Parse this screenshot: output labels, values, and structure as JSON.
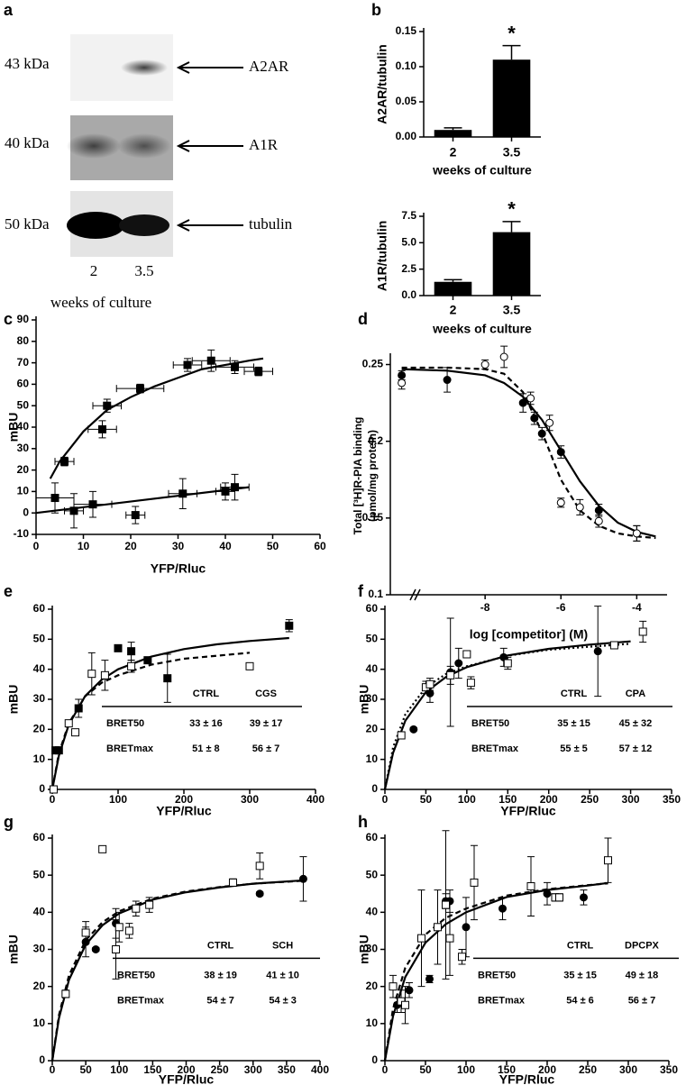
{
  "blot": {
    "label": "a",
    "bands": [
      {
        "size": "43 kDa",
        "name": "A2AR"
      },
      {
        "size": "40 kDa",
        "name": "A1R"
      },
      {
        "size": "50 kDa",
        "name": "tubulin"
      }
    ],
    "lanes": [
      "2",
      "3.5"
    ],
    "xlabel": "weeks of culture"
  },
  "chart_data": [
    {
      "type": "bar",
      "label": "b",
      "ylabel": "A2AR/tubulin",
      "xlabel": "weeks of culture",
      "categories": [
        "2",
        "3.5"
      ],
      "values": [
        0.01,
        0.11
      ],
      "yerr": [
        0.003,
        0.02
      ],
      "color": "#000000",
      "annotation": "*",
      "ylim": [
        0,
        0.15
      ],
      "yticks": [
        {
          "value": 0,
          "label": "0.00"
        },
        {
          "value": 0.05,
          "label": "0.05"
        },
        {
          "value": 0.1,
          "label": "0.10"
        },
        {
          "value": 0.15,
          "label": "0.15"
        }
      ]
    },
    {
      "type": "bar",
      "ylabel": "A1R/tubulin",
      "xlabel": "weeks of culture",
      "categories": [
        "2",
        "3.5"
      ],
      "values": [
        1.3,
        6.0
      ],
      "yerr": [
        0.2,
        1.0
      ],
      "color": "#000000",
      "annotation": "*",
      "ylim": [
        0,
        7.5
      ],
      "yticks": [
        {
          "value": 0,
          "label": "0.0"
        },
        {
          "value": 2.5,
          "label": "2.5"
        },
        {
          "value": 5,
          "label": "5.0"
        },
        {
          "value": 7.5,
          "label": "7.5"
        }
      ]
    },
    {
      "type": "scatter",
      "label": "c",
      "xlabel": "YFP/Rluc",
      "ylabel": "mBU",
      "xlim": [
        0,
        60
      ],
      "xticks": [
        0,
        10,
        20,
        30,
        40,
        50,
        60
      ],
      "ylim": [
        -10,
        90
      ],
      "yticks": [
        -10,
        0,
        10,
        20,
        30,
        40,
        50,
        60,
        70,
        80,
        90
      ],
      "series": [
        {
          "marker": "square-filled",
          "color": "#000000",
          "x": [
            6,
            14,
            15,
            22,
            32,
            37,
            42,
            47
          ],
          "values": [
            24,
            39,
            50,
            58,
            69,
            71,
            68,
            66
          ],
          "yerr": [
            2,
            4,
            3,
            2,
            3,
            5,
            3,
            2
          ],
          "xerr": [
            2,
            3,
            3,
            5,
            3,
            4,
            4,
            3
          ]
        },
        {
          "marker": "square-filled",
          "color": "#000000",
          "x": [
            4,
            8,
            12,
            21,
            31,
            40,
            42
          ],
          "values": [
            7,
            1,
            4,
            -1,
            9,
            10,
            12
          ],
          "yerr": [
            7,
            8,
            6,
            4,
            7,
            4,
            6
          ],
          "xerr": [
            4,
            2,
            4,
            2,
            3,
            2,
            3
          ]
        }
      ],
      "fits": [
        {
          "dash": "solid",
          "x": [
            3,
            5,
            10,
            15,
            20,
            25,
            30,
            35,
            40,
            45,
            48
          ],
          "y": [
            16,
            24,
            38,
            48,
            54,
            59,
            63,
            67,
            69,
            71,
            72
          ]
        },
        {
          "dash": "solid",
          "x": [
            0,
            45
          ],
          "y": [
            0,
            12
          ]
        }
      ]
    },
    {
      "type": "scatter",
      "label": "d",
      "xlabel": "log [competitor]  (M)",
      "ylabel": [
        "Total [³H]R-PIA binding",
        "(pmol/mg protein)"
      ],
      "axis_break": true,
      "xlim": [
        -10.5,
        -3.2
      ],
      "xticks": [
        -8,
        -6,
        -4
      ],
      "ylim": [
        0.1,
        0.255
      ],
      "yticks": [
        0.1,
        0.15,
        0.2,
        0.25
      ],
      "series": [
        {
          "marker": "circle-filled",
          "color": "#000000",
          "x": [
            -10.2,
            -9,
            -7,
            -6.7,
            -6.5,
            -6,
            -5,
            -4
          ],
          "values": [
            0.243,
            0.24,
            0.225,
            0.215,
            0.205,
            0.193,
            0.155,
            0.14
          ],
          "yerr": [
            0.003,
            0.008,
            0.006,
            0.004,
            0.004,
            0.004,
            0.004,
            0.005
          ]
        },
        {
          "marker": "circle-open",
          "color": "#000000",
          "x": [
            -10.2,
            -8,
            -7.5,
            -6.8,
            -6.3,
            -6,
            -5.5,
            -5,
            -4
          ],
          "values": [
            0.238,
            0.25,
            0.255,
            0.228,
            0.212,
            0.16,
            0.157,
            0.148,
            0.14
          ],
          "yerr": [
            0.004,
            0.003,
            0.007,
            0.004,
            0.005,
            0.003,
            0.005,
            0.004,
            0.005
          ]
        }
      ],
      "fits": [
        {
          "dash": "solid",
          "x": [
            -10.2,
            -9,
            -8,
            -7.5,
            -7,
            -6.5,
            -6,
            -5.5,
            -5,
            -4.5,
            -4,
            -3.5
          ],
          "y": [
            0.247,
            0.246,
            0.243,
            0.238,
            0.229,
            0.214,
            0.194,
            0.174,
            0.158,
            0.147,
            0.141,
            0.138
          ]
        },
        {
          "dash": "dashed",
          "x": [
            -10.2,
            -9,
            -8,
            -7.5,
            -7,
            -6.5,
            -6,
            -5.5,
            -5,
            -4.5,
            -4,
            -3.5
          ],
          "y": [
            0.248,
            0.248,
            0.247,
            0.244,
            0.232,
            0.206,
            0.175,
            0.155,
            0.145,
            0.14,
            0.138,
            0.137
          ]
        }
      ]
    },
    {
      "type": "scatter",
      "label": "e",
      "xlabel": "YFP/Rluc",
      "ylabel": "mBU",
      "xlim": [
        0,
        400
      ],
      "xticks": [
        0,
        100,
        200,
        300,
        400
      ],
      "ylim": [
        0,
        60
      ],
      "yticks": [
        0,
        10,
        20,
        30,
        40,
        50,
        60
      ],
      "series": [
        {
          "marker": "square-filled",
          "color": "#000000",
          "x": [
            5,
            10,
            40,
            100,
            120,
            145,
            175,
            360
          ],
          "values": [
            13,
            13,
            27,
            47,
            46,
            43,
            37,
            54.5
          ],
          "yerr": [
            1,
            1,
            3,
            1,
            3,
            1,
            8,
            2
          ]
        },
        {
          "marker": "square-open",
          "color": "#000000",
          "x": [
            2,
            25,
            35,
            60,
            80,
            120,
            300
          ],
          "values": [
            0,
            22,
            19,
            38.5,
            38,
            41,
            41
          ],
          "yerr": [
            0.5,
            1,
            1,
            7,
            5,
            2,
            0.5
          ]
        }
      ],
      "fits": [
        {
          "dash": "solid",
          "x": [
            0,
            10,
            25,
            50,
            75,
            100,
            150,
            200,
            250,
            300,
            360
          ],
          "y": [
            0,
            11.2,
            21.5,
            31.1,
            36.5,
            40,
            44.2,
            46.7,
            48.3,
            49.4,
            50.4
          ]
        },
        {
          "dash": "dashed",
          "x": [
            0,
            10,
            25,
            50,
            75,
            100,
            150,
            200,
            250,
            300
          ],
          "y": [
            0,
            12,
            22,
            31,
            35.5,
            38,
            41.5,
            43.5,
            44.5,
            45.5
          ]
        }
      ],
      "table": {
        "columns": [
          "CTRL",
          "CGS"
        ],
        "rows": [
          {
            "name": "BRET50",
            "cells": [
              "33 ± 16",
              "39 ± 17"
            ]
          },
          {
            "name": "BRETmax",
            "cells": [
              "51 ± 8",
              "56 ± 7"
            ]
          }
        ]
      }
    },
    {
      "type": "scatter",
      "label": "f",
      "xlabel": "YFP/Rluc",
      "ylabel": "mBU",
      "xlim": [
        0,
        350
      ],
      "xticks": [
        0,
        50,
        100,
        150,
        200,
        250,
        300,
        350
      ],
      "ylim": [
        0,
        60
      ],
      "yticks": [
        0,
        10,
        20,
        30,
        40,
        50,
        60
      ],
      "series": [
        {
          "marker": "circle-filled",
          "color": "#000000",
          "x": [
            35,
            55,
            80,
            90,
            145,
            260
          ],
          "values": [
            20,
            32,
            39,
            42,
            44,
            46
          ],
          "yerr": [
            0.5,
            3,
            18,
            5,
            3,
            15
          ]
        },
        {
          "marker": "square-open",
          "color": "#000000",
          "x": [
            20,
            50,
            55,
            80,
            100,
            105,
            150,
            280,
            315
          ],
          "values": [
            18,
            34,
            35,
            38,
            45,
            35.5,
            42,
            48,
            52.5
          ],
          "yerr": [
            1,
            2,
            2,
            3,
            0.5,
            2,
            2,
            1,
            3.5
          ]
        }
      ],
      "fits": [
        {
          "dash": "solid",
          "x": [
            0,
            10,
            25,
            50,
            75,
            100,
            150,
            200,
            250,
            300
          ],
          "y": [
            0,
            12.2,
            22.9,
            32.4,
            37.5,
            40.7,
            44.6,
            46.8,
            48.2,
            49.3
          ]
        },
        {
          "dash": "dotted",
          "x": [
            0,
            10,
            25,
            50,
            75,
            100,
            150,
            200,
            250,
            300
          ],
          "y": [
            0,
            14,
            25,
            34,
            38.5,
            41,
            44.5,
            46.5,
            47.5,
            48.5
          ]
        }
      ],
      "table": {
        "columns": [
          "CTRL",
          "CPA"
        ],
        "rows": [
          {
            "name": "BRET50",
            "cells": [
              "35 ± 15",
              "45 ± 32"
            ]
          },
          {
            "name": "BRETmax",
            "cells": [
              "55 ± 5",
              "57 ± 12"
            ]
          }
        ]
      }
    },
    {
      "type": "scatter",
      "label": "g",
      "xlabel": "YFP/Rluc",
      "ylabel": "mBU",
      "xlim": [
        0,
        400
      ],
      "xticks": [
        0,
        50,
        100,
        150,
        200,
        250,
        300,
        350,
        400
      ],
      "ylim": [
        0,
        60
      ],
      "yticks": [
        0,
        10,
        20,
        30,
        40,
        50,
        60
      ],
      "series": [
        {
          "marker": "circle-filled",
          "color": "#000000",
          "x": [
            50,
            65,
            95,
            310,
            375
          ],
          "values": [
            32,
            30,
            37,
            45,
            49
          ],
          "yerr": [
            4,
            0.5,
            4,
            0.5,
            6
          ]
        },
        {
          "marker": "square-open",
          "color": "#000000",
          "x": [
            20,
            50,
            75,
            95,
            100,
            115,
            125,
            145,
            270,
            310
          ],
          "values": [
            18,
            34.5,
            57,
            30,
            36,
            35,
            41,
            42,
            48,
            52.5
          ],
          "yerr": [
            1,
            3,
            0.5,
            8,
            4,
            2,
            2,
            2,
            1,
            3.5
          ]
        }
      ],
      "fits": [
        {
          "dash": "solid",
          "x": [
            0,
            10,
            25,
            50,
            75,
            100,
            150,
            200,
            250,
            300,
            375
          ],
          "y": [
            0,
            11.5,
            21.8,
            31.3,
            36.5,
            39.7,
            43.4,
            45.4,
            46.7,
            47.7,
            48.6
          ]
        },
        {
          "dash": "dashed",
          "x": [
            0,
            10,
            25,
            50,
            75,
            100,
            150,
            200,
            250,
            300,
            375
          ],
          "y": [
            0,
            12.3,
            23,
            32.5,
            37.3,
            40.3,
            43.7,
            45.6,
            46.8,
            47.7,
            48.5
          ]
        }
      ],
      "table": {
        "columns": [
          "CTRL",
          "SCH"
        ],
        "rows": [
          {
            "name": "BRET50",
            "cells": [
              "38 ± 19",
              "41 ± 10"
            ]
          },
          {
            "name": "BRETmax",
            "cells": [
              "54 ± 7",
              "54 ± 3"
            ]
          }
        ]
      }
    },
    {
      "type": "scatter",
      "label": "h",
      "xlabel": "YFP/Rluc",
      "ylabel": "mBU",
      "xlim": [
        0,
        350
      ],
      "xticks": [
        0,
        50,
        100,
        150,
        200,
        250,
        300,
        350
      ],
      "ylim": [
        0,
        60
      ],
      "yticks": [
        0,
        10,
        20,
        30,
        40,
        50,
        60
      ],
      "series": [
        {
          "marker": "circle-filled",
          "color": "#000000",
          "x": [
            15,
            30,
            55,
            75,
            80,
            100,
            145,
            200,
            245
          ],
          "values": [
            15,
            19,
            22,
            43,
            43,
            36,
            41,
            45,
            44
          ],
          "yerr": [
            2,
            2,
            1,
            2,
            3,
            8,
            3,
            3,
            2
          ]
        },
        {
          "marker": "square-open",
          "color": "#000000",
          "x": [
            10,
            20,
            25,
            45,
            65,
            75,
            80,
            95,
            110,
            180,
            210,
            215,
            275
          ],
          "values": [
            20,
            16,
            15,
            33,
            36,
            42,
            33,
            28,
            48,
            47,
            44,
            44,
            54
          ],
          "yerr": [
            3,
            3,
            5,
            13,
            10,
            20,
            10,
            2,
            10,
            8,
            1,
            1,
            6
          ]
        }
      ],
      "fits": [
        {
          "dash": "solid",
          "x": [
            0,
            10,
            25,
            50,
            75,
            100,
            150,
            200,
            250,
            275
          ],
          "y": [
            0,
            12,
            22.5,
            31.8,
            36.8,
            40,
            44.1,
            46,
            47.2,
            47.9
          ]
        },
        {
          "dash": "dashed",
          "x": [
            0,
            10,
            25,
            50,
            75,
            100,
            150,
            200,
            250,
            275
          ],
          "y": [
            0,
            14,
            25,
            34,
            38.5,
            41,
            44.5,
            46.2,
            47.3,
            47.8
          ]
        }
      ],
      "table": {
        "columns": [
          "CTRL",
          "DPCPX"
        ],
        "rows": [
          {
            "name": "BRET50",
            "cells": [
              "35 ± 15",
              "49 ± 18"
            ]
          },
          {
            "name": "BRETmax",
            "cells": [
              "54 ± 6",
              "56 ± 7"
            ]
          }
        ]
      }
    }
  ]
}
